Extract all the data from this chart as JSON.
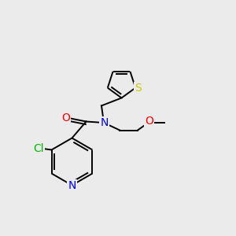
{
  "bg_color": "#ebebeb",
  "atom_colors": {
    "N": "#0000ff",
    "O_carbonyl": "#ff0000",
    "O_ether": "#ff0000",
    "Cl": "#00bb00",
    "S": "#cccc00",
    "C": "#000000"
  },
  "bond_lw": 1.4,
  "font_size": 10,
  "xlim": [
    0,
    10
  ],
  "ylim": [
    0,
    10
  ]
}
